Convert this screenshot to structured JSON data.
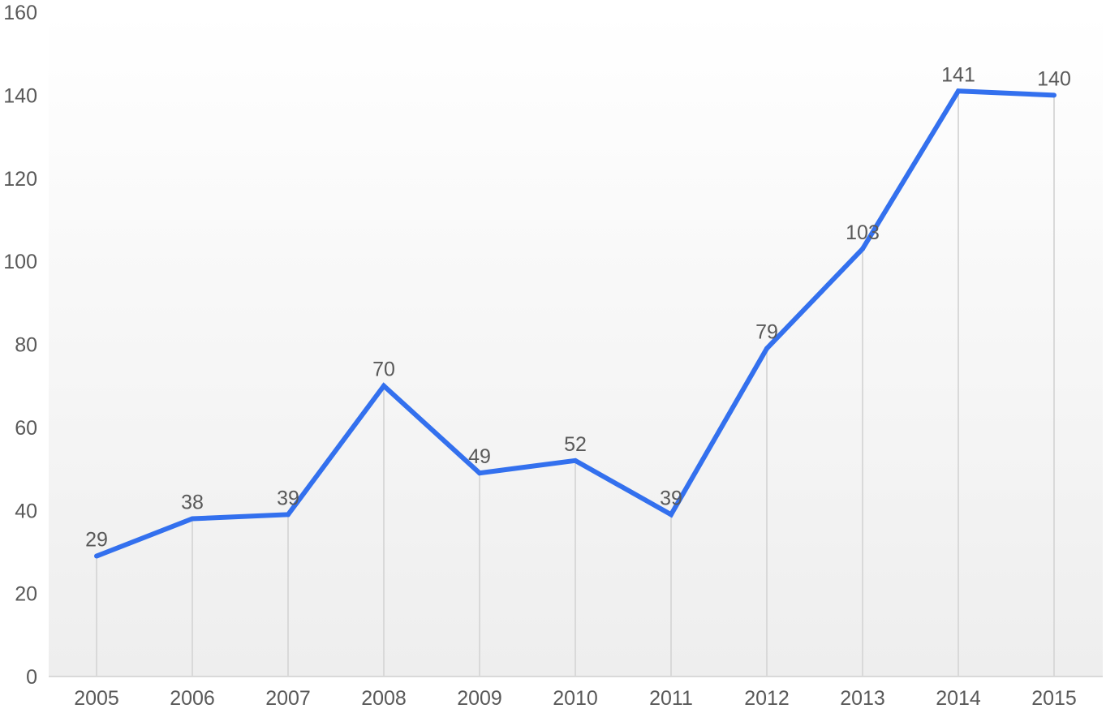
{
  "chart_data": {
    "type": "line",
    "title": "",
    "xlabel": "",
    "ylabel": "",
    "categories": [
      "2005",
      "2006",
      "2007",
      "2008",
      "2009",
      "2010",
      "2011",
      "2012",
      "2013",
      "2014",
      "2015"
    ],
    "series": [
      {
        "values": [
          29,
          38,
          39,
          70,
          49,
          52,
          39,
          79,
          103,
          141,
          140
        ],
        "color": "#3370ee"
      }
    ],
    "ylim": [
      0,
      160
    ],
    "yticks": [
      0,
      20,
      40,
      60,
      80,
      100,
      120,
      140,
      160
    ],
    "grid": false,
    "drop_lines": true,
    "data_labels": true,
    "legend": "none",
    "colors": {
      "line": "#3370ee",
      "drop_line": "#d9d9d9",
      "axis": "#d9d9d9",
      "text": "#595959",
      "background_top": "#ffffff",
      "background_bottom": "#eeeeee"
    }
  }
}
